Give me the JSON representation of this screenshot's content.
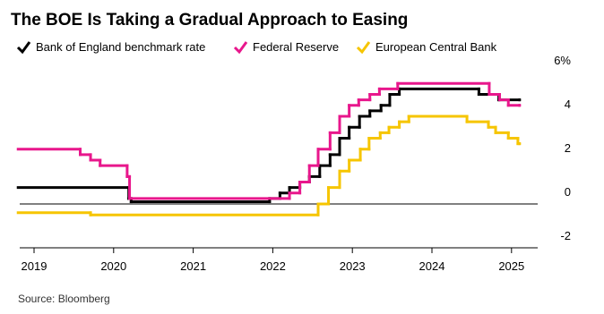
{
  "chart_data": {
    "type": "step-line",
    "title": "The BOE Is Taking a Gradual Approach to Easing",
    "source": "Source: Bloomberg",
    "xlim": [
      2018.8,
      2025.4
    ],
    "xticks": [
      2019,
      2020,
      2021,
      2022,
      2023,
      2024,
      2025
    ],
    "ylim": [
      -2,
      6
    ],
    "yticks": [
      -2,
      0,
      2,
      4,
      {
        "value": 6,
        "label": "6%"
      }
    ],
    "series": [
      {
        "name": "Bank of England benchmark rate",
        "color": "#000000",
        "x": [
          2018.8,
          2020.19,
          2020.22,
          2021.96,
          2022.09,
          2022.21,
          2022.34,
          2022.46,
          2022.59,
          2022.72,
          2022.84,
          2022.96,
          2023.09,
          2023.22,
          2023.36,
          2023.47,
          2023.59,
          2024.59,
          2024.84,
          2025.1
        ],
        "values": [
          0.75,
          0.25,
          0.1,
          0.25,
          0.5,
          0.75,
          1.0,
          1.25,
          1.75,
          2.25,
          3.0,
          3.5,
          4.0,
          4.25,
          4.5,
          5.0,
          5.25,
          5.0,
          4.75,
          4.75
        ]
      },
      {
        "name": "Federal Reserve",
        "color": "#e8178c",
        "x": [
          2018.8,
          2019.58,
          2019.71,
          2019.83,
          2020.17,
          2020.2,
          2022.21,
          2022.34,
          2022.46,
          2022.57,
          2022.72,
          2022.84,
          2022.96,
          2023.08,
          2023.22,
          2023.34,
          2023.57,
          2024.72,
          2024.85,
          2024.96,
          2025.1
        ],
        "values": [
          2.5,
          2.25,
          2.0,
          1.75,
          1.25,
          0.25,
          0.5,
          1.0,
          1.75,
          2.5,
          3.25,
          4.0,
          4.5,
          4.75,
          5.0,
          5.25,
          5.5,
          5.0,
          4.75,
          4.5,
          4.5
        ]
      },
      {
        "name": "European Central Bank",
        "color": "#f6c500",
        "x": [
          2018.8,
          2019.71,
          2022.57,
          2022.7,
          2022.84,
          2022.96,
          2023.1,
          2023.21,
          2023.35,
          2023.46,
          2023.59,
          2023.71,
          2024.44,
          2024.71,
          2024.8,
          2024.96,
          2025.08,
          2025.1
        ],
        "values": [
          -0.4,
          -0.5,
          0,
          0.75,
          1.5,
          2.0,
          2.5,
          3.0,
          3.25,
          3.5,
          3.75,
          4.0,
          3.75,
          3.5,
          3.25,
          3.0,
          2.75,
          2.75
        ]
      }
    ]
  }
}
